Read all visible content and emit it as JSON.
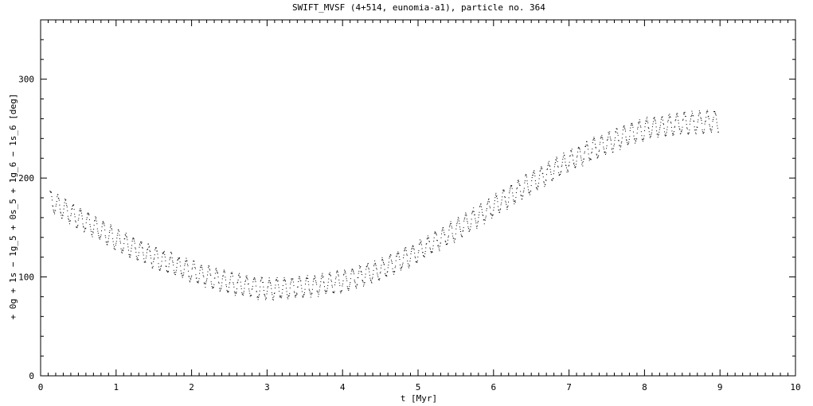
{
  "chart_data": {
    "type": "scatter",
    "title": "SWIFT_MVSF (4+514, eunomia-a1), particle no. 364",
    "xlabel": "t [Myr]",
    "ylabel": "+ 0g + 1s − 1g_5 + 0s_5 + 1g_6 − 1s_6 [deg]",
    "xlim": [
      0,
      10
    ],
    "ylim": [
      0,
      360
    ],
    "xticks": [
      0,
      1,
      2,
      3,
      4,
      5,
      6,
      7,
      8,
      9,
      10
    ],
    "xtick_labels": [
      "0",
      "1",
      "2",
      "3",
      "4",
      "5",
      "6",
      "7",
      "8",
      "9",
      "10"
    ],
    "yticks": [
      0,
      100,
      200,
      300
    ],
    "ytick_labels": [
      "0",
      "100",
      "200",
      "300"
    ],
    "grid": false,
    "marker_color": "#000000",
    "series": [
      {
        "oscillation_amplitude": 10,
        "oscillation_period_myr": 0.1,
        "t_start": 0.12,
        "t_end": 8.98,
        "trend": {
          "t": [
            0.1,
            0.5,
            1.0,
            1.5,
            2.0,
            2.5,
            3.0,
            3.5,
            4.0,
            4.5,
            5.0,
            5.5,
            6.0,
            6.5,
            7.0,
            7.5,
            8.0,
            8.5,
            9.0
          ],
          "y": [
            178,
            160,
            138,
            120,
            106,
            94,
            88,
            90,
            96,
            108,
            126,
            148,
            172,
            196,
            218,
            236,
            250,
            256,
            258
          ]
        }
      }
    ]
  }
}
